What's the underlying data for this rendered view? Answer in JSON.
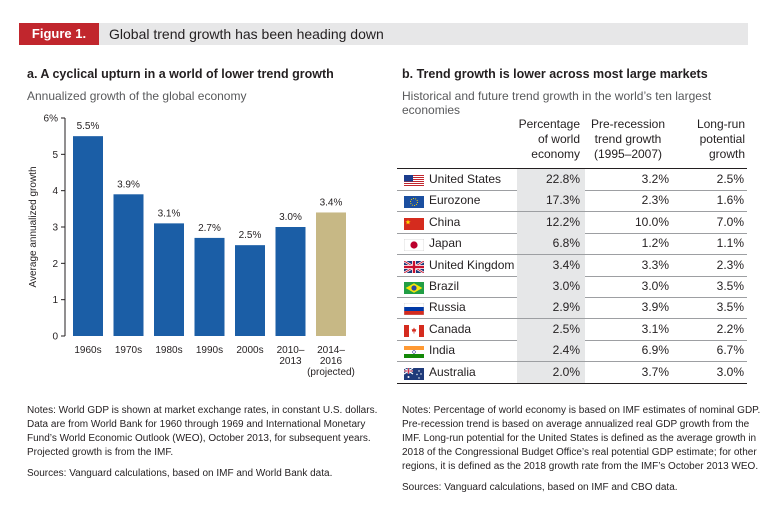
{
  "header": {
    "figure_label": "Figure 1.",
    "figure_title": "Global trend growth has been heading down"
  },
  "panel_a": {
    "title": "a. A cyclical upturn in a world of lower trend growth",
    "subtitle": "Annualized growth of the global economy"
  },
  "panel_b": {
    "title": "b. Trend growth is lower across most large markets",
    "subtitle": "Historical and future trend growth in the world’s ten largest economies"
  },
  "chart_data": {
    "type": "bar",
    "title": "Annualized growth of the global economy",
    "ylabel": "Average annualized growth",
    "xlabel": "",
    "ylim": [
      0,
      6
    ],
    "yticks": [
      "0",
      "1",
      "2",
      "3",
      "4",
      "5",
      "6%"
    ],
    "categories": [
      "1960s",
      "1970s",
      "1980s",
      "1990s",
      "2000s",
      "2010– 2013",
      "2014– 2016 (projected)"
    ],
    "category_lines": [
      [
        "1960s"
      ],
      [
        "1970s"
      ],
      [
        "1980s"
      ],
      [
        "1990s"
      ],
      [
        "2000s"
      ],
      [
        "2010–",
        "2013"
      ],
      [
        "2014–",
        "2016",
        "(projected)"
      ]
    ],
    "values": [
      5.5,
      3.9,
      3.1,
      2.7,
      2.5,
      3.0,
      3.4
    ],
    "value_labels": [
      "5.5%",
      "3.9%",
      "3.1%",
      "2.7%",
      "2.5%",
      "3.0%",
      "3.4%"
    ],
    "colors": [
      "#1b5ea6",
      "#1b5ea6",
      "#1b5ea6",
      "#1b5ea6",
      "#1b5ea6",
      "#1b5ea6",
      "#c7b885"
    ]
  },
  "table": {
    "columns": [
      [
        "Percentage",
        "of world",
        "economy"
      ],
      [
        "Pre-recession",
        "trend growth",
        "(1995–2007)"
      ],
      [
        "Long-run",
        "potential",
        "growth"
      ]
    ],
    "rows": [
      {
        "country": "United States",
        "flag": "us-flag-icon",
        "share": "22.8%",
        "pre": "3.2%",
        "long": "2.5%"
      },
      {
        "country": "Eurozone",
        "flag": "eu-flag-icon",
        "share": "17.3%",
        "pre": "2.3%",
        "long": "1.6%"
      },
      {
        "country": "China",
        "flag": "china-flag-icon",
        "share": "12.2%",
        "pre": "10.0%",
        "long": "7.0%"
      },
      {
        "country": "Japan",
        "flag": "japan-flag-icon",
        "share": "6.8%",
        "pre": "1.2%",
        "long": "1.1%"
      },
      {
        "country": "United Kingdom",
        "flag": "uk-flag-icon",
        "share": "3.4%",
        "pre": "3.3%",
        "long": "2.3%"
      },
      {
        "country": "Brazil",
        "flag": "brazil-flag-icon",
        "share": "3.0%",
        "pre": "3.0%",
        "long": "3.5%"
      },
      {
        "country": "Russia",
        "flag": "russia-flag-icon",
        "share": "2.9%",
        "pre": "3.9%",
        "long": "3.5%"
      },
      {
        "country": "Canada",
        "flag": "canada-flag-icon",
        "share": "2.5%",
        "pre": "3.1%",
        "long": "2.2%"
      },
      {
        "country": "India",
        "flag": "india-flag-icon",
        "share": "2.4%",
        "pre": "6.9%",
        "long": "6.7%"
      },
      {
        "country": "Australia",
        "flag": "australia-flag-icon",
        "share": "2.0%",
        "pre": "3.7%",
        "long": "3.0%"
      }
    ]
  },
  "notes_a": {
    "lines": [
      "Notes: World GDP is shown at market exchange rates, in constant U.S. dollars.",
      "Data are from World Bank for 1960 through 1969 and International Monetary",
      "Fund’s World Economic Outlook (WEO), October 2013, for subsequent years.",
      "Projected growth is from the IMF."
    ],
    "sources": "Sources: Vanguard calculations, based on IMF and World Bank data."
  },
  "notes_b": {
    "lines": [
      "Notes: Percentage of world economy is based on IMF estimates of nominal GDP.",
      "Pre-recession trend is based on average annualized real GDP growth from the",
      "IMF. Long-run potential for the United States is defined as the average growth in",
      "2018 of the Congressional Budget Office’s real potential GDP estimate; for other",
      "regions, it is defined as the 2018 growth rate from the IMF’s October 2013 WEO."
    ],
    "sources": "Sources: Vanguard calculations, based on IMF and CBO data."
  }
}
